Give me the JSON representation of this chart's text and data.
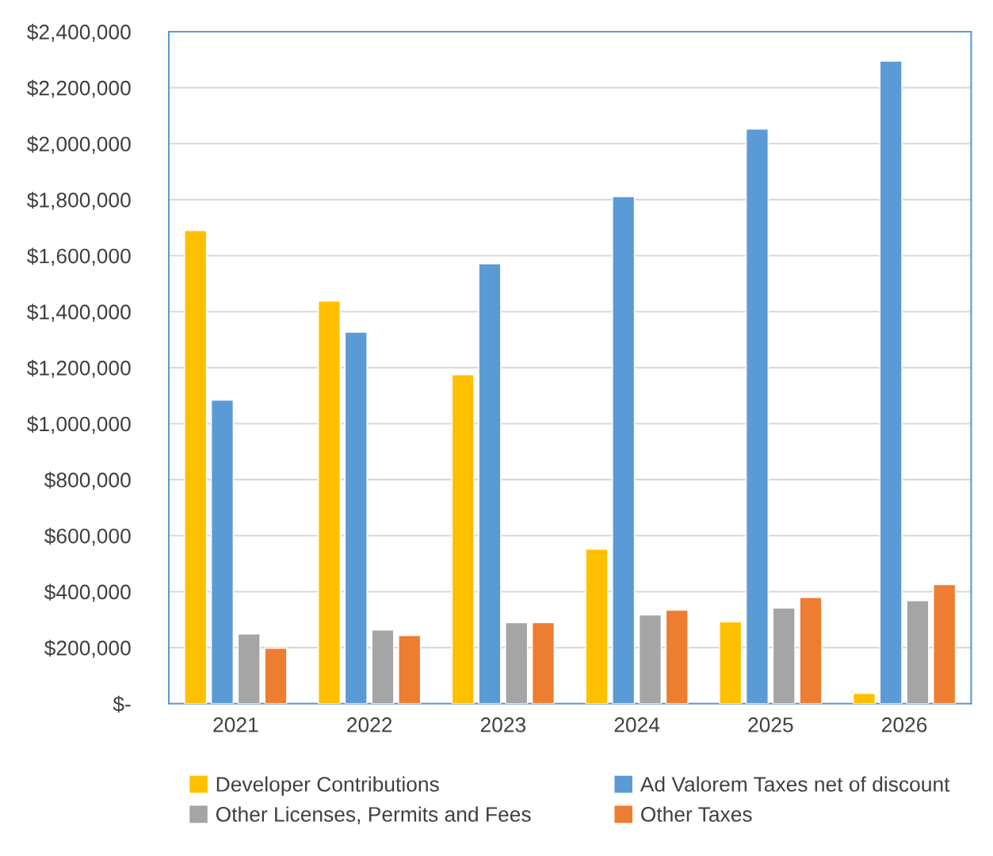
{
  "chart_data": {
    "type": "bar",
    "categories": [
      "2021",
      "2022",
      "2023",
      "2024",
      "2025",
      "2026"
    ],
    "series": [
      {
        "name": "Developer Contributions",
        "color": "#ffc000",
        "values": [
          1690000,
          1438000,
          1175000,
          552000,
          292000,
          37000
        ]
      },
      {
        "name": "Ad Valorem Taxes net of discount",
        "color": "#5b9bd5",
        "values": [
          1084000,
          1327000,
          1571000,
          1811000,
          2052000,
          2295000
        ]
      },
      {
        "name": "Other Licenses, Permits and Fees",
        "color": "#a5a5a5",
        "values": [
          249000,
          263000,
          289000,
          317000,
          342000,
          368000
        ]
      },
      {
        "name": "Other Taxes",
        "color": "#ed7d31",
        "values": [
          198000,
          243000,
          289000,
          334000,
          379000,
          425000
        ]
      }
    ],
    "ylim": [
      0,
      2400000
    ],
    "yticks": [
      {
        "value": 0,
        "label": "$-"
      },
      {
        "value": 200000,
        "label": "$200,000"
      },
      {
        "value": 400000,
        "label": "$400,000"
      },
      {
        "value": 600000,
        "label": "$600,000"
      },
      {
        "value": 800000,
        "label": "$800,000"
      },
      {
        "value": 1000000,
        "label": "$1,000,000"
      },
      {
        "value": 1200000,
        "label": "$1,200,000"
      },
      {
        "value": 1400000,
        "label": "$1,400,000"
      },
      {
        "value": 1600000,
        "label": "$1,600,000"
      },
      {
        "value": 1800000,
        "label": "$1,800,000"
      },
      {
        "value": 2000000,
        "label": "$2,000,000"
      },
      {
        "value": 2200000,
        "label": "$2,200,000"
      },
      {
        "value": 2400000,
        "label": "$2,400,000"
      }
    ],
    "grid": "y",
    "legend": "bottom"
  }
}
